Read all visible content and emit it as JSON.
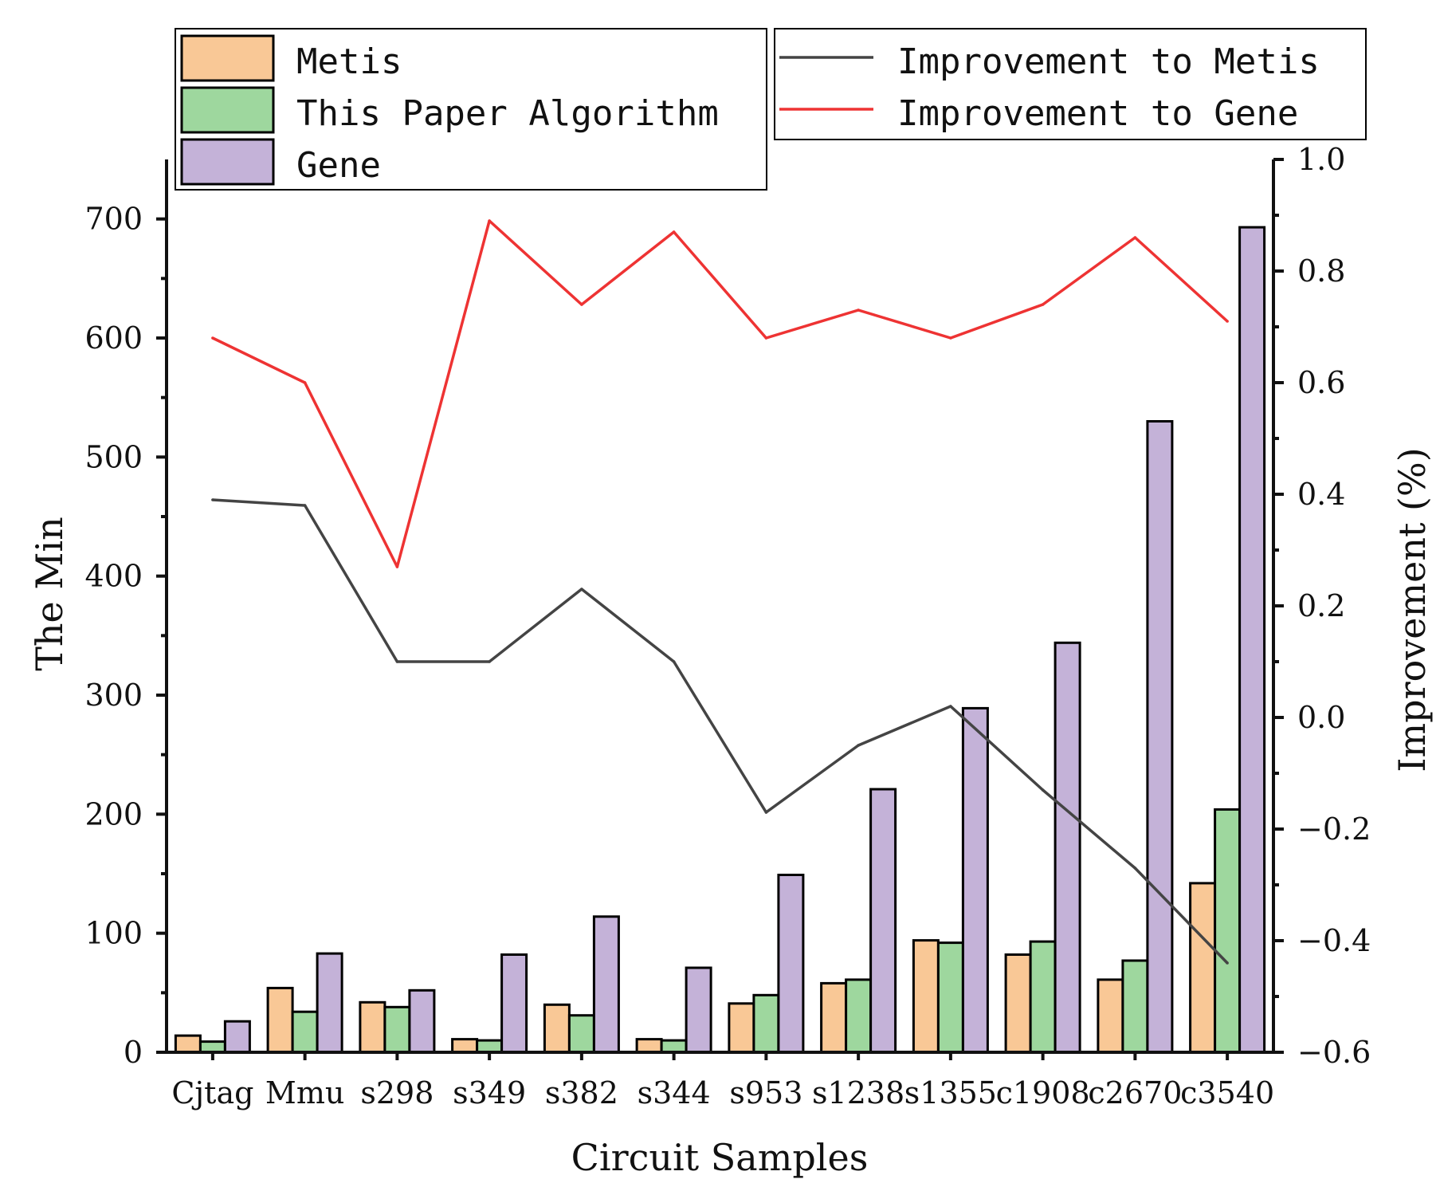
{
  "chart_data": {
    "type": "bar",
    "title": "",
    "xlabel": "Circuit Samples",
    "ylabel": "The Min",
    "y2label": "Improvement (%)",
    "categories": [
      "Cjtag",
      "Mmu",
      "s298",
      "s349",
      "s382",
      "s344",
      "s953",
      "s1238",
      "s1355",
      "c1908",
      "c2670",
      "c3540"
    ],
    "ylim": [
      0,
      750
    ],
    "y_ticks": [
      "0",
      "100",
      "200",
      "300",
      "400",
      "500",
      "600",
      "700"
    ],
    "y2lim": [
      -0.6,
      1.0
    ],
    "y2_ticks": [
      "−0.6",
      "−0.4",
      "−0.2",
      "0.0",
      "0.2",
      "0.4",
      "0.6",
      "0.8",
      "1.0"
    ],
    "grid": false,
    "series": [
      {
        "name": "Metis",
        "kind": "bar",
        "axis": "left",
        "color": "#f9c896",
        "values": [
          14,
          54,
          42,
          11,
          40,
          11,
          41,
          58,
          94,
          82,
          61,
          142
        ]
      },
      {
        "name": "This Paper Algorithm",
        "kind": "bar",
        "axis": "left",
        "color": "#9ed79e",
        "values": [
          9,
          34,
          38,
          10,
          31,
          10,
          48,
          61,
          92,
          93,
          77,
          204
        ]
      },
      {
        "name": "Gene",
        "kind": "bar",
        "axis": "left",
        "color": "#c4b2d8",
        "values": [
          26,
          83,
          52,
          82,
          114,
          71,
          149,
          221,
          289,
          344,
          530,
          693
        ]
      },
      {
        "name": "Improvement to Metis",
        "kind": "line",
        "axis": "right",
        "color": "#444444",
        "values": [
          0.39,
          0.38,
          0.1,
          0.1,
          0.23,
          0.1,
          -0.17,
          -0.05,
          0.02,
          -0.13,
          -0.27,
          -0.44
        ]
      },
      {
        "name": "Improvement to Gene",
        "kind": "line",
        "axis": "right",
        "color": "#ee3333",
        "values": [
          0.68,
          0.6,
          0.27,
          0.89,
          0.74,
          0.87,
          0.68,
          0.73,
          0.68,
          0.74,
          0.86,
          0.71
        ]
      }
    ],
    "legend": {
      "bars_placement": "top-left",
      "lines_placement": "top-right"
    }
  }
}
